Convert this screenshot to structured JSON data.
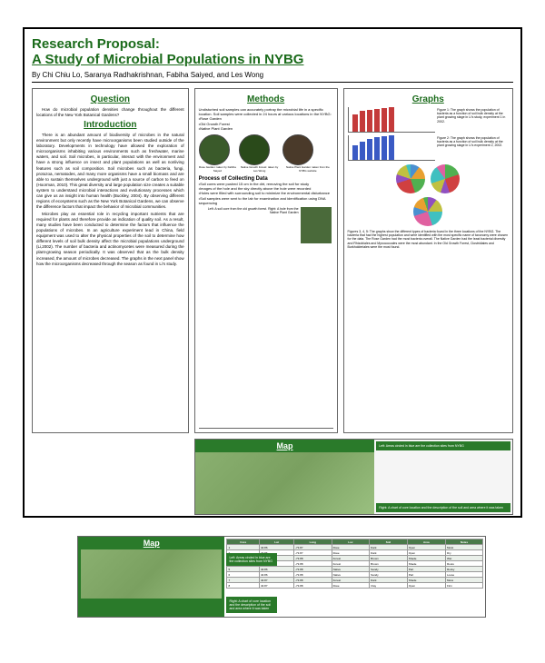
{
  "header": {
    "title_line1": "Research Proposal:",
    "title_line2": "A Study of Microbial Populations in NYBG",
    "authors": "By Chi Chiu Lo, Saranya Radhakrishnan, Fabiha Saiyed, and Les Wong"
  },
  "question": {
    "heading": "Question",
    "text": "How do microbial population densities change throughout the different locations of the New York Botanical Gardens?"
  },
  "introduction": {
    "heading": "Introduction",
    "p1": "There is an abundant amount of biodiversity of microbes in the natural environment but only recently have microorganisms been studied outside of the laboratory. Developments in technology have allowed the exploration of microorganisms inhabiting various environments such as freshwater, marine waters, and soil. Soil microbes, in particular, interact with the environment and have a strong influence on insect and plant populations as well as nonliving features such as soil composition. Soil microbes such as bacteria, fungi, protozoa, nematodes, and many more organisms have a small biomass and are able to sustain themselves underground with just a source of carbon to feed on (Hoorman, 2010). This great diversity and large population size creates a suitable system to understand microbial interactions and evolutionary processes which can give us an insight into human health (Buckley, 2004). By observing different regions of ecosystems such as the New York Botanical Gardens, we can observe the difference factors that impact the behavior of microbial communities.",
    "p2": "Microbes play an essential role in recycling important nutrients that are required for plants and therefore provide an indication of quality soil. As a result, many studies have been conducted to determine the factors that influence the populations of microbes. In an agriculture experiment lead in China, field equipment was used to alter the physical properties of the soil to determine how different levels of soil bulk density affect the microbial populations underground (Li,2002). The number of bacteria and actinomycetes were measured during the plant-growing season periodically. It was observed that as the bulk density increased, the amount of microbes decreased. The graphs in the next panel show how the microorganisms decreased through the season as found in Li's study."
  },
  "methods": {
    "heading": "Methods",
    "intro": "Undisturbed soil samples can accurately portray the microbial life in a specific location. Soil samples were collected in 24 hours at various locations in the NYBG:",
    "sites": [
      "•Rose Garden",
      "•Old Growth Forest",
      "•Native Plant Garden"
    ],
    "photo_labels": [
      "Rose Garden: taken by Fabiha Saiyed",
      "Native Growth Forest: taken by Les Wong",
      "Native Plant Garden: taken from the NYBG website"
    ],
    "process_heading": "Process of Collecting Data",
    "process": [
      "•Soil cores were pushed 15 cm in the dirt, removing the soil for study",
      "•Images of the hole and the sky directly above the hole were recorded",
      "•Holes were filled with surrounding soil to minimize the environmental disturbance",
      "•Soil samples were sent to the lab for examination and identification using DNA sequencing"
    ],
    "proc_img_caption": "Left: A soil core from the old growth forest. Right: A hole from the Native Plant Garden"
  },
  "graphs": {
    "heading": "Graphs",
    "bar1": {
      "values": [
        620,
        740,
        780,
        810,
        840,
        860
      ],
      "color": "#c43a3a",
      "caption": "Figure 1: The graph shows the population of bacteria as a function of soil bulk density at the plant growing stage in Li's study, experiment 1 in 2002."
    },
    "bar2": {
      "values": [
        500,
        640,
        720,
        780,
        820,
        850
      ],
      "color": "#3a5ac4",
      "caption": "Figure 2: The graph shows the population of bacteria as a function of soil bulk density at the plant growing stage in Li's experiment 2, 2002."
    },
    "pie_colors": [
      "#4a90d0",
      "#e8a030",
      "#50b050",
      "#d04040",
      "#9050c0",
      "#c0c040",
      "#40c0c0",
      "#e060a0"
    ],
    "pie_caption": "Figures 3, 4, 5: The graphs show the different types of bacteria found in the three locations of the NYBG. The bacteria that had the highest population and were identified with the most specific name of taxonomy were chosen for the data. The Rose Garden had the most bacteria overall. The Native Garden had the least bacterial diversity and Rhizobiales and Myxococcales were the most abundant. In the Old Growth Forest, Clostridiales and Burkholderiales were the most found."
  },
  "map": {
    "heading": "Map",
    "note_left": "Left: Areas circled in blue are the collection sites from NYBG",
    "note_right": "Right: A chart of core location and the description of the soil and area where it was taken"
  },
  "lower_map": {
    "heading": "Map",
    "note_left": "Left: Areas circled in blue are the collection sites from NYBG",
    "note_right": "Right: A chart of core location and the description of the soil and area where it was taken",
    "table": {
      "headers": [
        "Core",
        "Lat",
        "Long",
        "Loc",
        "Soil",
        "Area",
        "Notes"
      ],
      "rows": [
        [
          "1",
          "40.86",
          "-73.87",
          "Rose",
          "Dark",
          "Open",
          "Moist"
        ],
        [
          "2",
          "40.86",
          "-73.87",
          "Rose",
          "Dark",
          "Open",
          "Dry"
        ],
        [
          "3",
          "40.86",
          "-73.88",
          "Forest",
          "Brown",
          "Shade",
          "Wet"
        ],
        [
          "4",
          "40.86",
          "-73.88",
          "Forest",
          "Brown",
          "Shade",
          "Roots"
        ],
        [
          "5",
          "40.86",
          "-73.88",
          "Native",
          "Sandy",
          "Part",
          "Rocky"
        ],
        [
          "6",
          "40.86",
          "-73.88",
          "Native",
          "Sandy",
          "Part",
          "Loose"
        ],
        [
          "7",
          "40.87",
          "-73.88",
          "Forest",
          "Dark",
          "Shade",
          "Moss"
        ],
        [
          "8",
          "40.87",
          "-73.88",
          "Rose",
          "Clay",
          "Open",
          "Firm"
        ]
      ]
    }
  },
  "colors": {
    "green_heading": "#1b6b1b",
    "panel_green": "#2a7a2a",
    "map_bg": "#7aa060"
  }
}
